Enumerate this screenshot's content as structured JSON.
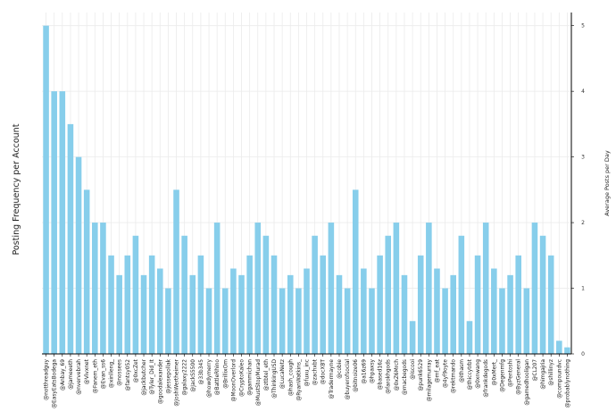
{
  "chart_data": {
    "type": "bar",
    "title": "",
    "xlabel": "",
    "ylabel": "Posting Frequency per Account",
    "ylabel_right": "Average Posts per Day",
    "ylim": [
      0,
      5.2
    ],
    "yticks": [
      0,
      1,
      2,
      3,
      4,
      5
    ],
    "grid": true,
    "bar_color": "#87CEEB",
    "axis_color": "#000000",
    "grid_color": "#ebebeb",
    "categories": [
      "@notthreadguy",
      "@EasyEatsBodega",
      "@Anbay_69",
      "@jameeeth",
      "@nvervebrah",
      "@Vivxnet",
      "@Fanem_eth",
      "@Evan_ss6",
      "@xinlleng_",
      "@nossees",
      "@fantsy052",
      "@0xcZet",
      "@jackbutcher",
      "@Tyler_Did_It",
      "@goodalexander",
      "@jessepollak",
      "@JoshWertheimer",
      "@galaxy2222",
      "@JackS5500",
      "@33b345",
      "@howdymerry",
      "@BattleRhino",
      "@BrillixOm",
      "@MoonOverlord",
      "@CryptoKaleo",
      "@gammichan",
      "@MustStopMurad",
      "@ztbtel_eth",
      "@ThinkingUSD",
      "@LucaNetz",
      "@hash_cough",
      "@RyanWatkins_",
      "@fuxu_inc",
      "@zachxbt",
      "@docXBT",
      "@Tradermayne",
      "@cobie",
      "@buyerofsocial",
      "@bitnoize06",
      "@a16z69",
      "@hpaxsy",
      "@based16z",
      "@farokhgods",
      "@0xZ6Mrch",
      "@macbegods",
      "@iscooi",
      "@punk6529",
      "@milagemurray",
      "@mf_eat",
      "@4yf9oyte",
      "@rektmando",
      "@ithasm",
      "@thiccytrbt",
      "@0xnwang",
      "@frankdegods",
      "@0xMert_",
      "@Degenmfg",
      "@Pentoshi",
      "@ByzGeneral",
      "@gamedhooligan",
      "@CL207",
      "@himgajria",
      "@shillinyz",
      "@compoundvc",
      "@probablynothing"
    ],
    "values": [
      5.0,
      4.0,
      4.0,
      3.5,
      3.0,
      2.5,
      2.0,
      2.0,
      1.5,
      1.2,
      1.5,
      1.8,
      1.2,
      1.5,
      1.3,
      1.0,
      2.5,
      1.8,
      1.2,
      1.5,
      1.0,
      2.0,
      1.0,
      1.3,
      1.2,
      1.5,
      2.0,
      1.8,
      1.5,
      1.0,
      1.2,
      1.0,
      1.3,
      1.8,
      1.5,
      2.0,
      1.2,
      1.0,
      2.5,
      1.3,
      1.0,
      1.5,
      1.8,
      2.0,
      1.2,
      0.5,
      1.5,
      2.0,
      1.3,
      1.0,
      1.2,
      1.8,
      0.5,
      1.5,
      2.0,
      1.3,
      1.0,
      1.2,
      1.5,
      1.0,
      2.0,
      1.8,
      1.5,
      0.2,
      0.1
    ]
  }
}
